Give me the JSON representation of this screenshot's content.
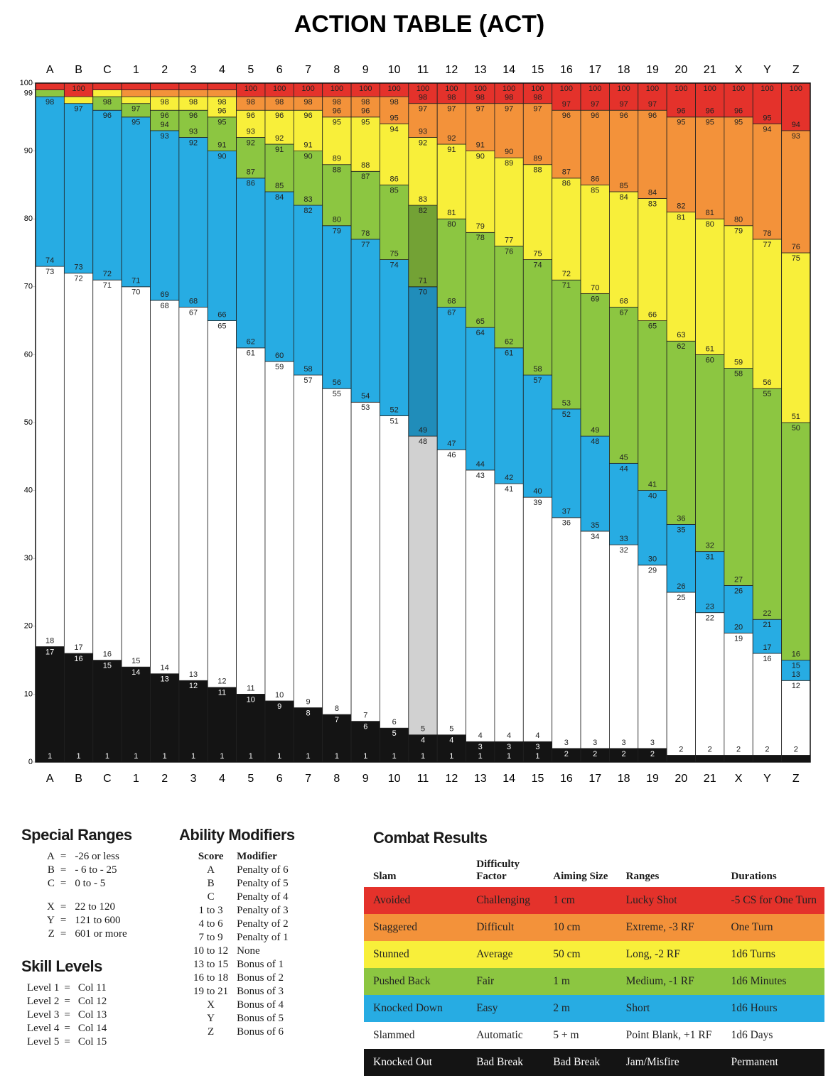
{
  "chart_data": {
    "type": "stacked-range",
    "title": "ACTION TABLE (ACT)",
    "ylim": [
      0,
      100
    ],
    "yticks": [
      0,
      10,
      20,
      30,
      40,
      50,
      60,
      70,
      80,
      90,
      99,
      100
    ],
    "band_colors": [
      "#141414",
      "#ffffff",
      "#27ace3",
      "#8cc641",
      "#f8ef3a",
      "#f3923a",
      "#e4322b"
    ],
    "columns": [
      {
        "label": "A",
        "ranges": [
          [
            1,
            17
          ],
          [
            18,
            73
          ],
          [
            74,
            98
          ],
          [
            99,
            99
          ],
          null,
          null,
          [
            100,
            100
          ]
        ]
      },
      {
        "label": "B",
        "ranges": [
          [
            1,
            16
          ],
          [
            17,
            72
          ],
          [
            73,
            97
          ],
          null,
          [
            98,
            98
          ],
          null,
          [
            99,
            100
          ]
        ]
      },
      {
        "label": "C",
        "ranges": [
          [
            1,
            15
          ],
          [
            16,
            71
          ],
          [
            72,
            96
          ],
          [
            97,
            98
          ],
          [
            99,
            99
          ],
          null,
          [
            100,
            100
          ]
        ]
      },
      {
        "label": "1",
        "ranges": [
          [
            1,
            14
          ],
          [
            15,
            70
          ],
          [
            71,
            95
          ],
          [
            96,
            97
          ],
          [
            98,
            98
          ],
          [
            99,
            99
          ],
          [
            100,
            100
          ]
        ]
      },
      {
        "label": "2",
        "ranges": [
          [
            1,
            13
          ],
          [
            14,
            68
          ],
          [
            69,
            93
          ],
          [
            94,
            96
          ],
          [
            97,
            98
          ],
          [
            99,
            99
          ],
          [
            100,
            100
          ]
        ]
      },
      {
        "label": "3",
        "ranges": [
          [
            1,
            12
          ],
          [
            13,
            67
          ],
          [
            68,
            92
          ],
          [
            93,
            96
          ],
          [
            97,
            98
          ],
          [
            99,
            99
          ],
          [
            100,
            100
          ]
        ]
      },
      {
        "label": "4",
        "ranges": [
          [
            1,
            11
          ],
          [
            12,
            65
          ],
          [
            66,
            90
          ],
          [
            91,
            95
          ],
          [
            96,
            98
          ],
          [
            99,
            99
          ],
          [
            100,
            100
          ]
        ]
      },
      {
        "label": "5",
        "ranges": [
          [
            1,
            10
          ],
          [
            11,
            61
          ],
          [
            62,
            86
          ],
          [
            87,
            92
          ],
          [
            93,
            96
          ],
          [
            97,
            98
          ],
          [
            99,
            100
          ]
        ]
      },
      {
        "label": "6",
        "ranges": [
          [
            1,
            9
          ],
          [
            10,
            59
          ],
          [
            60,
            84
          ],
          [
            85,
            91
          ],
          [
            92,
            96
          ],
          [
            97,
            98
          ],
          [
            99,
            100
          ]
        ]
      },
      {
        "label": "7",
        "ranges": [
          [
            1,
            8
          ],
          [
            9,
            57
          ],
          [
            58,
            82
          ],
          [
            83,
            90
          ],
          [
            91,
            96
          ],
          [
            97,
            98
          ],
          [
            99,
            100
          ]
        ]
      },
      {
        "label": "8",
        "ranges": [
          [
            1,
            7
          ],
          [
            8,
            55
          ],
          [
            56,
            79
          ],
          [
            80,
            88
          ],
          [
            89,
            95
          ],
          [
            96,
            98
          ],
          [
            99,
            100
          ]
        ]
      },
      {
        "label": "9",
        "ranges": [
          [
            1,
            6
          ],
          [
            7,
            53
          ],
          [
            54,
            77
          ],
          [
            78,
            87
          ],
          [
            88,
            95
          ],
          [
            96,
            98
          ],
          [
            99,
            100
          ]
        ]
      },
      {
        "label": "10",
        "ranges": [
          [
            1,
            5
          ],
          [
            6,
            51
          ],
          [
            52,
            74
          ],
          [
            75,
            85
          ],
          [
            86,
            94
          ],
          [
            95,
            98
          ],
          [
            99,
            100
          ]
        ]
      },
      {
        "label": "11",
        "highlight": true,
        "ranges": [
          [
            1,
            4
          ],
          [
            5,
            48
          ],
          [
            49,
            70
          ],
          [
            71,
            82
          ],
          [
            83,
            92
          ],
          [
            93,
            97
          ],
          [
            98,
            100
          ]
        ]
      },
      {
        "label": "12",
        "ranges": [
          [
            1,
            4
          ],
          [
            5,
            46
          ],
          [
            47,
            67
          ],
          [
            68,
            80
          ],
          [
            81,
            91
          ],
          [
            92,
            97
          ],
          [
            98,
            100
          ]
        ]
      },
      {
        "label": "13",
        "ranges": [
          [
            1,
            3
          ],
          [
            4,
            43
          ],
          [
            44,
            64
          ],
          [
            65,
            78
          ],
          [
            79,
            90
          ],
          [
            91,
            97
          ],
          [
            98,
            100
          ]
        ]
      },
      {
        "label": "14",
        "ranges": [
          [
            1,
            3
          ],
          [
            4,
            41
          ],
          [
            42,
            61
          ],
          [
            62,
            76
          ],
          [
            77,
            89
          ],
          [
            90,
            97
          ],
          [
            98,
            100
          ]
        ]
      },
      {
        "label": "15",
        "ranges": [
          [
            1,
            3
          ],
          [
            4,
            39
          ],
          [
            40,
            57
          ],
          [
            58,
            74
          ],
          [
            75,
            88
          ],
          [
            89,
            97
          ],
          [
            98,
            100
          ]
        ]
      },
      {
        "label": "16",
        "ranges": [
          [
            1,
            2
          ],
          [
            3,
            36
          ],
          [
            37,
            52
          ],
          [
            53,
            71
          ],
          [
            72,
            86
          ],
          [
            87,
            96
          ],
          [
            97,
            100
          ]
        ]
      },
      {
        "label": "17",
        "ranges": [
          [
            1,
            2
          ],
          [
            3,
            34
          ],
          [
            35,
            48
          ],
          [
            49,
            69
          ],
          [
            70,
            85
          ],
          [
            86,
            96
          ],
          [
            97,
            100
          ]
        ]
      },
      {
        "label": "18",
        "ranges": [
          [
            1,
            2
          ],
          [
            3,
            32
          ],
          [
            33,
            44
          ],
          [
            45,
            67
          ],
          [
            68,
            84
          ],
          [
            85,
            96
          ],
          [
            97,
            100
          ]
        ]
      },
      {
        "label": "19",
        "ranges": [
          [
            1,
            2
          ],
          [
            3,
            29
          ],
          [
            30,
            40
          ],
          [
            41,
            65
          ],
          [
            66,
            83
          ],
          [
            84,
            96
          ],
          [
            97,
            100
          ]
        ]
      },
      {
        "label": "20",
        "ranges": [
          [
            1,
            1
          ],
          [
            2,
            25
          ],
          [
            26,
            35
          ],
          [
            36,
            62
          ],
          [
            63,
            81
          ],
          [
            82,
            95
          ],
          [
            96,
            100
          ]
        ]
      },
      {
        "label": "21",
        "ranges": [
          [
            1,
            1
          ],
          [
            2,
            22
          ],
          [
            23,
            31
          ],
          [
            32,
            60
          ],
          [
            61,
            80
          ],
          [
            81,
            95
          ],
          [
            96,
            100
          ]
        ]
      },
      {
        "label": "X",
        "ranges": [
          [
            1,
            1
          ],
          [
            2,
            19
          ],
          [
            20,
            26
          ],
          [
            27,
            58
          ],
          [
            59,
            79
          ],
          [
            80,
            95
          ],
          [
            96,
            100
          ]
        ]
      },
      {
        "label": "Y",
        "ranges": [
          [
            1,
            1
          ],
          [
            2,
            16
          ],
          [
            17,
            21
          ],
          [
            22,
            55
          ],
          [
            56,
            77
          ],
          [
            78,
            94
          ],
          [
            95,
            100
          ]
        ]
      },
      {
        "label": "Z",
        "ranges": [
          [
            1,
            1
          ],
          [
            2,
            12
          ],
          [
            13,
            15
          ],
          [
            16,
            50
          ],
          [
            51,
            75
          ],
          [
            76,
            93
          ],
          [
            94,
            100
          ]
        ]
      }
    ]
  },
  "special_ranges": {
    "title": "Special Ranges",
    "groups": [
      [
        [
          "A",
          "=",
          "-26 or less"
        ],
        [
          "B",
          "=",
          "- 6 to - 25"
        ],
        [
          "C",
          "=",
          "0 to - 5"
        ]
      ],
      [
        [
          "X",
          "=",
          "22 to 120"
        ],
        [
          "Y",
          "=",
          "121 to 600"
        ],
        [
          "Z",
          "=",
          "601 or more"
        ]
      ]
    ]
  },
  "skill_levels": {
    "title": "Skill Levels",
    "rows": [
      [
        "Level 1",
        "=",
        "Col 11"
      ],
      [
        "Level 2",
        "=",
        "Col 12"
      ],
      [
        "Level 3",
        "=",
        "Col 13"
      ],
      [
        "Level 4",
        "=",
        "Col 14"
      ],
      [
        "Level 5",
        "=",
        "Col 15"
      ]
    ]
  },
  "ability_modifiers": {
    "title": "Ability Modifiers",
    "headers": [
      "Score",
      "Modifier"
    ],
    "rows": [
      [
        "A",
        "Penalty of 6"
      ],
      [
        "B",
        "Penalty of 5"
      ],
      [
        "C",
        "Penalty of 4"
      ],
      [
        "1 to 3",
        "Penalty of 3"
      ],
      [
        "4 to 6",
        "Penalty of 2"
      ],
      [
        "7 to 9",
        "Penalty of 1"
      ],
      [
        "10 to 12",
        "None"
      ],
      [
        "13 to 15",
        "Bonus of 1"
      ],
      [
        "16 to 18",
        "Bonus of 2"
      ],
      [
        "19 to 21",
        "Bonus of 3"
      ],
      [
        "X",
        "Bonus of 4"
      ],
      [
        "Y",
        "Bonus of 5"
      ],
      [
        "Z",
        "Bonus of 6"
      ]
    ]
  },
  "combat_results": {
    "title": "Combat Results",
    "headers": [
      "Slam",
      "Difficulty Factor",
      "Aiming Size",
      "Ranges",
      "Durations"
    ],
    "rows": [
      {
        "color": "#e4322b",
        "cells": [
          "Avoided",
          "Challenging",
          "1 cm",
          "Lucky Shot",
          "-5 CS for One Turn"
        ]
      },
      {
        "color": "#f3923a",
        "cells": [
          "Staggered",
          "Difficult",
          "10 cm",
          "Extreme, -3 RF",
          "One Turn"
        ]
      },
      {
        "color": "#f8ef3a",
        "cells": [
          "Stunned",
          "Average",
          "50 cm",
          "Long, -2 RF",
          "1d6 Turns"
        ]
      },
      {
        "color": "#8cc641",
        "cells": [
          "Pushed Back",
          "Fair",
          "1 m",
          "Medium, -1 RF",
          "1d6 Minutes"
        ]
      },
      {
        "color": "#27ace3",
        "cells": [
          "Knocked Down",
          "Easy",
          "2 m",
          "Short",
          "1d6 Hours"
        ]
      },
      {
        "color": "#ffffff",
        "cells": [
          "Slammed",
          "Automatic",
          "5 + m",
          "Point Blank, +1 RF",
          "1d6 Days"
        ]
      },
      {
        "color": "#141414",
        "cells": [
          "Knocked Out",
          "Bad Break",
          "Bad Break",
          "Jam/Misfire",
          "Permanent"
        ]
      }
    ]
  }
}
